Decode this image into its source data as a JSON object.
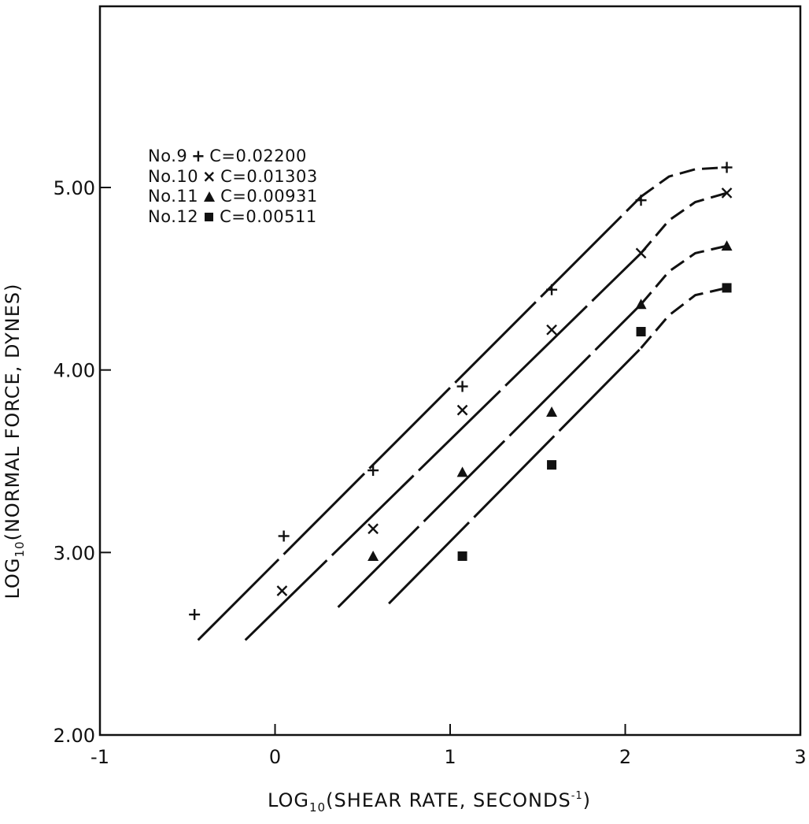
{
  "chart_data": {
    "type": "scatter",
    "xlabel": {
      "prefix": "LOG",
      "sub": "10",
      "main": "(SHEAR RATE, SECONDS",
      "sup": "-1",
      "suffix": ")"
    },
    "ylabel": {
      "prefix": "LOG",
      "sub": "10",
      "main": "(NORMAL FORCE, DYNES)"
    },
    "xlim": [
      -1,
      3
    ],
    "ylim": [
      2.0,
      5.0
    ],
    "x_ticks": [
      "-1",
      "0",
      "1",
      "2",
      "3"
    ],
    "y_ticks": [
      "2.00",
      "3.00",
      "4.00",
      "5.00"
    ],
    "grid": false,
    "legend_position": "upper-left",
    "series": [
      {
        "name": "No.9",
        "marker": "+",
        "marker_icon": "plus-icon",
        "label": "C=0.02200",
        "points": [
          [
            -0.46,
            2.66
          ],
          [
            0.05,
            3.09
          ],
          [
            0.56,
            3.45
          ],
          [
            1.07,
            3.91
          ],
          [
            1.58,
            4.44
          ],
          [
            2.09,
            4.93
          ],
          [
            2.58,
            5.11
          ]
        ],
        "fit_line": [
          [
            -0.44,
            2.52
          ],
          [
            2.09,
            4.95
          ]
        ],
        "fit_curve_dashed": [
          [
            2.09,
            4.95
          ],
          [
            2.25,
            5.06
          ],
          [
            2.4,
            5.1
          ],
          [
            2.58,
            5.11
          ]
        ]
      },
      {
        "name": "No.10",
        "marker": "×",
        "marker_icon": "cross-icon",
        "label": "C=0.01303",
        "points": [
          [
            0.04,
            2.79
          ],
          [
            0.56,
            3.13
          ],
          [
            1.07,
            3.78
          ],
          [
            1.58,
            4.22
          ],
          [
            2.09,
            4.64
          ],
          [
            2.58,
            4.97
          ]
        ],
        "fit_line": [
          [
            -0.17,
            2.52
          ],
          [
            2.09,
            4.64
          ]
        ],
        "fit_curve_dashed": [
          [
            2.09,
            4.64
          ],
          [
            2.25,
            4.82
          ],
          [
            2.4,
            4.92
          ],
          [
            2.58,
            4.97
          ]
        ]
      },
      {
        "name": "No.11",
        "marker": "▲",
        "marker_icon": "triangle-icon",
        "label": "C=0.00931",
        "points": [
          [
            0.56,
            2.98
          ],
          [
            1.07,
            3.44
          ],
          [
            1.58,
            3.77
          ],
          [
            2.09,
            4.36
          ],
          [
            2.58,
            4.68
          ]
        ],
        "fit_line": [
          [
            0.36,
            2.7
          ],
          [
            2.09,
            4.36
          ]
        ],
        "fit_curve_dashed": [
          [
            2.09,
            4.36
          ],
          [
            2.25,
            4.54
          ],
          [
            2.4,
            4.64
          ],
          [
            2.58,
            4.68
          ]
        ]
      },
      {
        "name": "No.12",
        "marker": "■",
        "marker_icon": "square-icon",
        "label": "C=0.00511",
        "points": [
          [
            1.07,
            2.98
          ],
          [
            1.58,
            3.48
          ],
          [
            2.09,
            4.21
          ],
          [
            2.58,
            4.45
          ]
        ],
        "fit_line": [
          [
            0.65,
            2.72
          ],
          [
            2.09,
            4.12
          ]
        ],
        "fit_curve_dashed": [
          [
            2.09,
            4.12
          ],
          [
            2.25,
            4.3
          ],
          [
            2.4,
            4.41
          ],
          [
            2.58,
            4.45
          ]
        ]
      }
    ]
  }
}
